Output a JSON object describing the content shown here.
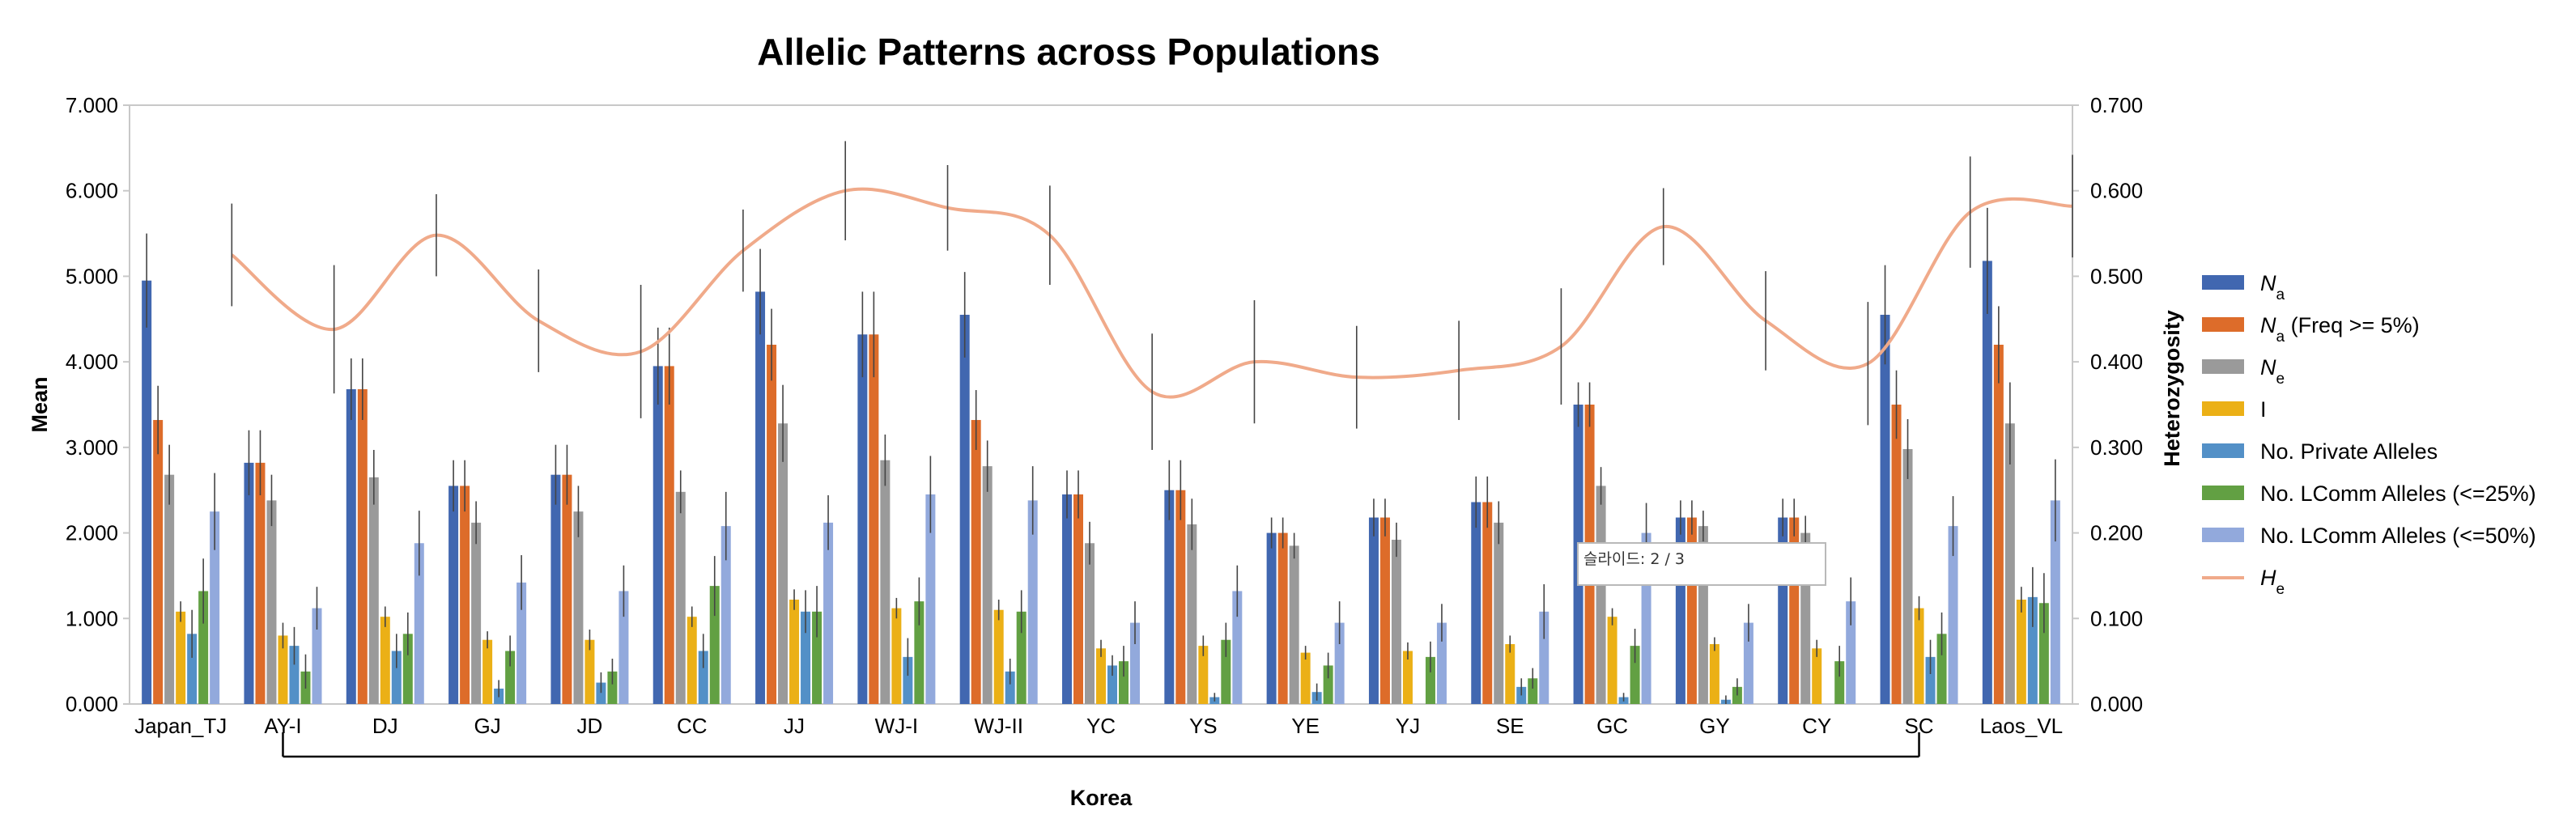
{
  "chart_data": {
    "type": "bar",
    "title": "Allelic Patterns across Populations",
    "ylabel": "Mean",
    "y2label": "Heterozygosity",
    "ylim": [
      0,
      7
    ],
    "y2lim": [
      0,
      0.7
    ],
    "yticks": [
      "0.000",
      "1.000",
      "2.000",
      "3.000",
      "4.000",
      "5.000",
      "6.000",
      "7.000"
    ],
    "y2ticks": [
      "0.000",
      "0.100",
      "0.200",
      "0.300",
      "0.400",
      "0.500",
      "0.600",
      "0.700"
    ],
    "categories": [
      "Japan_TJ",
      "AY-I",
      "DJ",
      "GJ",
      "JD",
      "CC",
      "JJ",
      "WJ-I",
      "WJ-II",
      "YC",
      "YS",
      "YE",
      "YJ",
      "SE",
      "GC",
      "GY",
      "CY",
      "SC",
      "Laos_VL"
    ],
    "group_label": "Korea",
    "group_from": "AY-I",
    "group_to": "SC",
    "legend_position": "right",
    "series": [
      {
        "name": "Na",
        "main": "N",
        "sub": "a",
        "suffix": "",
        "color": "#4167b0",
        "values": [
          4.95,
          2.82,
          3.68,
          2.55,
          2.68,
          3.95,
          4.82,
          4.32,
          4.55,
          2.45,
          2.5,
          2.0,
          2.18,
          2.36,
          3.5,
          2.18,
          2.18,
          4.55,
          5.18
        ],
        "errors": [
          0.55,
          0.38,
          0.36,
          0.3,
          0.35,
          0.45,
          0.5,
          0.5,
          0.5,
          0.28,
          0.35,
          0.18,
          0.22,
          0.3,
          0.26,
          0.2,
          0.22,
          0.58,
          0.62
        ]
      },
      {
        "name": "Na (Freq >= 5%)",
        "main": "N",
        "sub": "a",
        "suffix": " (Freq >= 5%)",
        "color": "#dd6c2a",
        "values": [
          3.32,
          2.82,
          3.68,
          2.55,
          2.68,
          3.95,
          4.2,
          4.32,
          3.32,
          2.45,
          2.5,
          2.0,
          2.18,
          2.36,
          3.5,
          2.18,
          2.18,
          3.5,
          4.2
        ],
        "errors": [
          0.4,
          0.38,
          0.36,
          0.3,
          0.35,
          0.45,
          0.42,
          0.5,
          0.35,
          0.28,
          0.35,
          0.18,
          0.22,
          0.3,
          0.26,
          0.2,
          0.22,
          0.4,
          0.45
        ]
      },
      {
        "name": "Ne",
        "main": "N",
        "sub": "e",
        "suffix": "",
        "color": "#9a9a9a",
        "values": [
          2.68,
          2.38,
          2.65,
          2.12,
          2.25,
          2.48,
          3.28,
          2.85,
          2.78,
          1.88,
          2.1,
          1.85,
          1.92,
          2.12,
          2.55,
          2.08,
          2.0,
          2.98,
          3.28
        ],
        "errors": [
          0.35,
          0.3,
          0.32,
          0.25,
          0.3,
          0.25,
          0.45,
          0.3,
          0.3,
          0.25,
          0.3,
          0.15,
          0.2,
          0.25,
          0.22,
          0.18,
          0.2,
          0.35,
          0.48
        ]
      },
      {
        "name": "I",
        "main": "I",
        "sub": "",
        "suffix": "",
        "color": "#ebb016",
        "values": [
          1.08,
          0.8,
          1.02,
          0.75,
          0.75,
          1.02,
          1.22,
          1.12,
          1.1,
          0.65,
          0.68,
          0.6,
          0.62,
          0.7,
          1.02,
          0.7,
          0.65,
          1.12,
          1.22
        ],
        "errors": [
          0.12,
          0.15,
          0.12,
          0.1,
          0.12,
          0.12,
          0.12,
          0.12,
          0.12,
          0.1,
          0.12,
          0.08,
          0.1,
          0.1,
          0.1,
          0.08,
          0.1,
          0.14,
          0.15
        ]
      },
      {
        "name": "No. Private Alleles",
        "main": "No. Private Alleles",
        "sub": "",
        "suffix": "",
        "color": "#5390c7",
        "values": [
          0.82,
          0.68,
          0.62,
          0.18,
          0.25,
          0.62,
          1.08,
          0.55,
          0.38,
          0.45,
          0.08,
          0.14,
          0.0,
          0.2,
          0.08,
          0.05,
          0.0,
          0.55,
          1.25
        ],
        "errors": [
          0.28,
          0.22,
          0.2,
          0.1,
          0.12,
          0.2,
          0.25,
          0.22,
          0.15,
          0.12,
          0.05,
          0.1,
          0.0,
          0.1,
          0.05,
          0.05,
          0.0,
          0.2,
          0.35
        ]
      },
      {
        "name": "No. LComm Alleles (<=25%)",
        "main": "No. LComm Alleles (<=25%)",
        "sub": "",
        "suffix": "",
        "color": "#62a043",
        "values": [
          1.32,
          0.38,
          0.82,
          0.62,
          0.38,
          1.38,
          1.08,
          1.2,
          1.08,
          0.5,
          0.75,
          0.45,
          0.55,
          0.3,
          0.68,
          0.2,
          0.5,
          0.82,
          1.18
        ],
        "errors": [
          0.38,
          0.2,
          0.25,
          0.18,
          0.15,
          0.35,
          0.3,
          0.28,
          0.25,
          0.18,
          0.2,
          0.15,
          0.18,
          0.12,
          0.2,
          0.1,
          0.18,
          0.25,
          0.35
        ]
      },
      {
        "name": "No. LComm Alleles (<=50%)",
        "main": "No. LComm Alleles (<=50%)",
        "sub": "",
        "suffix": "",
        "color": "#92a9dc",
        "values": [
          2.25,
          1.12,
          1.88,
          1.42,
          1.32,
          2.08,
          2.12,
          2.45,
          2.38,
          0.95,
          1.32,
          0.95,
          0.95,
          1.08,
          2.0,
          0.95,
          1.2,
          2.08,
          2.38
        ],
        "errors": [
          0.45,
          0.25,
          0.38,
          0.32,
          0.3,
          0.4,
          0.32,
          0.45,
          0.4,
          0.25,
          0.3,
          0.25,
          0.22,
          0.32,
          0.35,
          0.22,
          0.28,
          0.35,
          0.48
        ]
      }
    ],
    "line_series": {
      "name": "He",
      "main": "H",
      "sub": "e",
      "color": "#f0aa8a",
      "axis": "right",
      "start_category": "AY-I",
      "values": [
        0.525,
        0.438,
        0.548,
        0.448,
        0.412,
        0.53,
        0.6,
        0.58,
        0.548,
        0.365,
        0.4,
        0.382,
        0.39,
        0.418,
        0.558,
        0.448,
        0.398,
        0.575,
        0.582
      ],
      "errors": [
        0.06,
        0.075,
        0.048,
        0.06,
        0.078,
        0.048,
        0.058,
        0.05,
        0.058,
        0.068,
        0.072,
        0.06,
        0.058,
        0.068,
        0.045,
        0.058,
        0.072,
        0.065,
        0.06
      ]
    }
  },
  "tooltip": {
    "text": "슬라이드: 2 / 3"
  }
}
